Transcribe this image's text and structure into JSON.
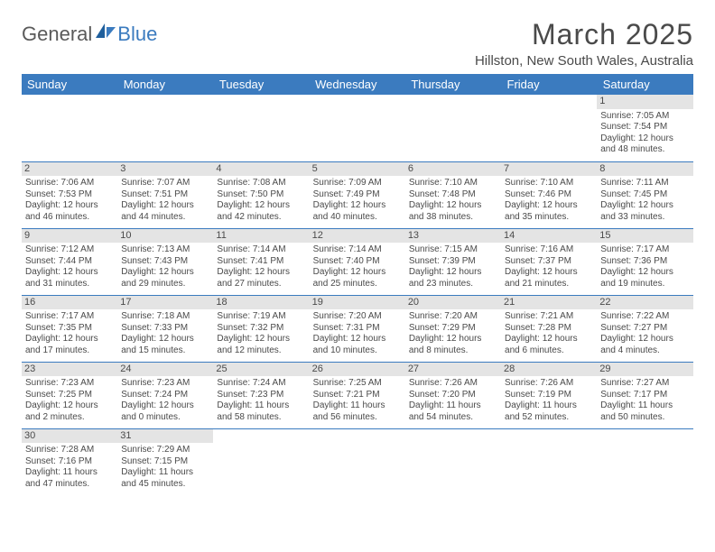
{
  "logo": {
    "part1": "General",
    "part2": "Blue"
  },
  "title": "March 2025",
  "location": "Hillston, New South Wales, Australia",
  "header_bg": "#3b7bbf",
  "days": [
    "Sunday",
    "Monday",
    "Tuesday",
    "Wednesday",
    "Thursday",
    "Friday",
    "Saturday"
  ],
  "weeks": [
    [
      null,
      null,
      null,
      null,
      null,
      null,
      {
        "n": "1",
        "sr": "Sunrise: 7:05 AM",
        "ss": "Sunset: 7:54 PM",
        "d1": "Daylight: 12 hours",
        "d2": "and 48 minutes."
      }
    ],
    [
      {
        "n": "2",
        "sr": "Sunrise: 7:06 AM",
        "ss": "Sunset: 7:53 PM",
        "d1": "Daylight: 12 hours",
        "d2": "and 46 minutes."
      },
      {
        "n": "3",
        "sr": "Sunrise: 7:07 AM",
        "ss": "Sunset: 7:51 PM",
        "d1": "Daylight: 12 hours",
        "d2": "and 44 minutes."
      },
      {
        "n": "4",
        "sr": "Sunrise: 7:08 AM",
        "ss": "Sunset: 7:50 PM",
        "d1": "Daylight: 12 hours",
        "d2": "and 42 minutes."
      },
      {
        "n": "5",
        "sr": "Sunrise: 7:09 AM",
        "ss": "Sunset: 7:49 PM",
        "d1": "Daylight: 12 hours",
        "d2": "and 40 minutes."
      },
      {
        "n": "6",
        "sr": "Sunrise: 7:10 AM",
        "ss": "Sunset: 7:48 PM",
        "d1": "Daylight: 12 hours",
        "d2": "and 38 minutes."
      },
      {
        "n": "7",
        "sr": "Sunrise: 7:10 AM",
        "ss": "Sunset: 7:46 PM",
        "d1": "Daylight: 12 hours",
        "d2": "and 35 minutes."
      },
      {
        "n": "8",
        "sr": "Sunrise: 7:11 AM",
        "ss": "Sunset: 7:45 PM",
        "d1": "Daylight: 12 hours",
        "d2": "and 33 minutes."
      }
    ],
    [
      {
        "n": "9",
        "sr": "Sunrise: 7:12 AM",
        "ss": "Sunset: 7:44 PM",
        "d1": "Daylight: 12 hours",
        "d2": "and 31 minutes."
      },
      {
        "n": "10",
        "sr": "Sunrise: 7:13 AM",
        "ss": "Sunset: 7:43 PM",
        "d1": "Daylight: 12 hours",
        "d2": "and 29 minutes."
      },
      {
        "n": "11",
        "sr": "Sunrise: 7:14 AM",
        "ss": "Sunset: 7:41 PM",
        "d1": "Daylight: 12 hours",
        "d2": "and 27 minutes."
      },
      {
        "n": "12",
        "sr": "Sunrise: 7:14 AM",
        "ss": "Sunset: 7:40 PM",
        "d1": "Daylight: 12 hours",
        "d2": "and 25 minutes."
      },
      {
        "n": "13",
        "sr": "Sunrise: 7:15 AM",
        "ss": "Sunset: 7:39 PM",
        "d1": "Daylight: 12 hours",
        "d2": "and 23 minutes."
      },
      {
        "n": "14",
        "sr": "Sunrise: 7:16 AM",
        "ss": "Sunset: 7:37 PM",
        "d1": "Daylight: 12 hours",
        "d2": "and 21 minutes."
      },
      {
        "n": "15",
        "sr": "Sunrise: 7:17 AM",
        "ss": "Sunset: 7:36 PM",
        "d1": "Daylight: 12 hours",
        "d2": "and 19 minutes."
      }
    ],
    [
      {
        "n": "16",
        "sr": "Sunrise: 7:17 AM",
        "ss": "Sunset: 7:35 PM",
        "d1": "Daylight: 12 hours",
        "d2": "and 17 minutes."
      },
      {
        "n": "17",
        "sr": "Sunrise: 7:18 AM",
        "ss": "Sunset: 7:33 PM",
        "d1": "Daylight: 12 hours",
        "d2": "and 15 minutes."
      },
      {
        "n": "18",
        "sr": "Sunrise: 7:19 AM",
        "ss": "Sunset: 7:32 PM",
        "d1": "Daylight: 12 hours",
        "d2": "and 12 minutes."
      },
      {
        "n": "19",
        "sr": "Sunrise: 7:20 AM",
        "ss": "Sunset: 7:31 PM",
        "d1": "Daylight: 12 hours",
        "d2": "and 10 minutes."
      },
      {
        "n": "20",
        "sr": "Sunrise: 7:20 AM",
        "ss": "Sunset: 7:29 PM",
        "d1": "Daylight: 12 hours",
        "d2": "and 8 minutes."
      },
      {
        "n": "21",
        "sr": "Sunrise: 7:21 AM",
        "ss": "Sunset: 7:28 PM",
        "d1": "Daylight: 12 hours",
        "d2": "and 6 minutes."
      },
      {
        "n": "22",
        "sr": "Sunrise: 7:22 AM",
        "ss": "Sunset: 7:27 PM",
        "d1": "Daylight: 12 hours",
        "d2": "and 4 minutes."
      }
    ],
    [
      {
        "n": "23",
        "sr": "Sunrise: 7:23 AM",
        "ss": "Sunset: 7:25 PM",
        "d1": "Daylight: 12 hours",
        "d2": "and 2 minutes."
      },
      {
        "n": "24",
        "sr": "Sunrise: 7:23 AM",
        "ss": "Sunset: 7:24 PM",
        "d1": "Daylight: 12 hours",
        "d2": "and 0 minutes."
      },
      {
        "n": "25",
        "sr": "Sunrise: 7:24 AM",
        "ss": "Sunset: 7:23 PM",
        "d1": "Daylight: 11 hours",
        "d2": "and 58 minutes."
      },
      {
        "n": "26",
        "sr": "Sunrise: 7:25 AM",
        "ss": "Sunset: 7:21 PM",
        "d1": "Daylight: 11 hours",
        "d2": "and 56 minutes."
      },
      {
        "n": "27",
        "sr": "Sunrise: 7:26 AM",
        "ss": "Sunset: 7:20 PM",
        "d1": "Daylight: 11 hours",
        "d2": "and 54 minutes."
      },
      {
        "n": "28",
        "sr": "Sunrise: 7:26 AM",
        "ss": "Sunset: 7:19 PM",
        "d1": "Daylight: 11 hours",
        "d2": "and 52 minutes."
      },
      {
        "n": "29",
        "sr": "Sunrise: 7:27 AM",
        "ss": "Sunset: 7:17 PM",
        "d1": "Daylight: 11 hours",
        "d2": "and 50 minutes."
      }
    ],
    [
      {
        "n": "30",
        "sr": "Sunrise: 7:28 AM",
        "ss": "Sunset: 7:16 PM",
        "d1": "Daylight: 11 hours",
        "d2": "and 47 minutes."
      },
      {
        "n": "31",
        "sr": "Sunrise: 7:29 AM",
        "ss": "Sunset: 7:15 PM",
        "d1": "Daylight: 11 hours",
        "d2": "and 45 minutes."
      },
      null,
      null,
      null,
      null,
      null
    ]
  ]
}
